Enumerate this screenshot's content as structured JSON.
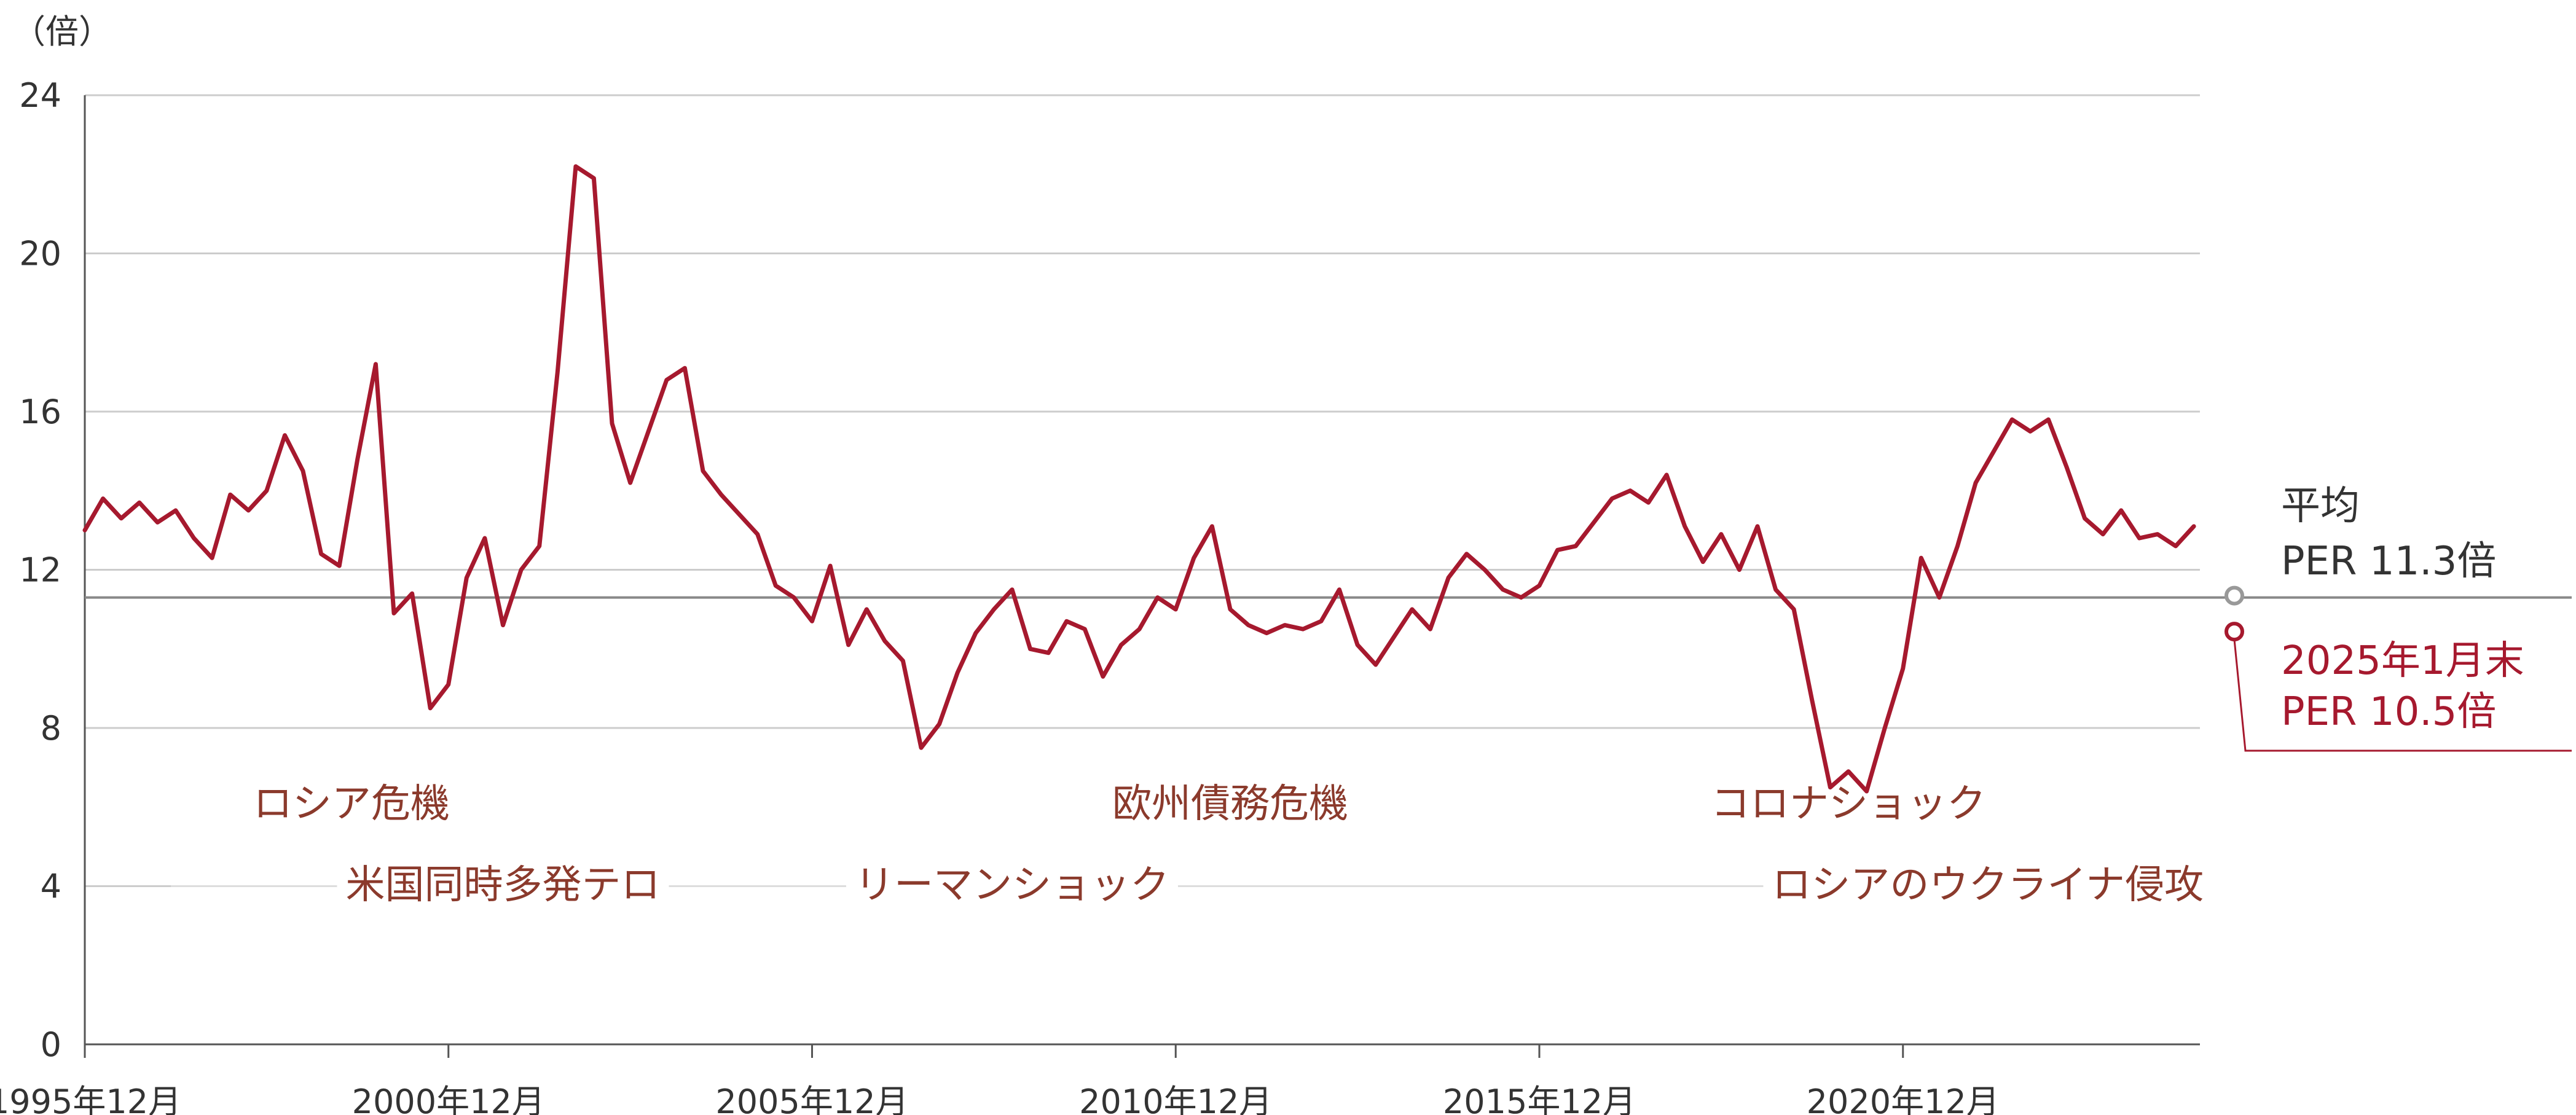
{
  "chart_data": {
    "type": "line",
    "y_unit_label": "（倍）",
    "ylim": [
      0,
      24
    ],
    "yticks": [
      "0",
      "4",
      "8",
      "12",
      "16",
      "20",
      "24"
    ],
    "x_range": [
      "1995-12",
      "2025-01"
    ],
    "xticks": [
      {
        "date": "1995-12",
        "label": "1995年12月"
      },
      {
        "date": "2000-12",
        "label": "2000年12月"
      },
      {
        "date": "2005-12",
        "label": "2005年12月"
      },
      {
        "date": "2010-12",
        "label": "2010年12月"
      },
      {
        "date": "2015-12",
        "label": "2015年12月"
      },
      {
        "date": "2020-12",
        "label": "2020年12月"
      }
    ],
    "grid": true,
    "average": {
      "value": 11.3,
      "label_line1": "平均",
      "label_line2": "PER 11.3倍"
    },
    "latest": {
      "date": "2025-01",
      "value": 10.5,
      "label_line1": "2025年1月末",
      "label_line2": "PER 10.5倍"
    },
    "series": [
      {
        "color": "#a6192e",
        "points": [
          [
            "1995-12",
            13.0
          ],
          [
            "1996-03",
            13.8
          ],
          [
            "1996-06",
            13.3
          ],
          [
            "1996-09",
            13.7
          ],
          [
            "1996-12",
            13.2
          ],
          [
            "1997-03",
            13.5
          ],
          [
            "1997-06",
            12.8
          ],
          [
            "1997-09",
            12.3
          ],
          [
            "1997-12",
            13.9
          ],
          [
            "1998-03",
            13.5
          ],
          [
            "1998-06",
            14.0
          ],
          [
            "1998-09",
            15.4
          ],
          [
            "1998-12",
            14.5
          ],
          [
            "1999-03",
            12.4
          ],
          [
            "1999-06",
            12.1
          ],
          [
            "1999-09",
            14.8
          ],
          [
            "1999-12",
            17.2
          ],
          [
            "2000-03",
            10.9
          ],
          [
            "2000-06",
            11.4
          ],
          [
            "2000-09",
            8.5
          ],
          [
            "2000-12",
            9.1
          ],
          [
            "2001-03",
            11.8
          ],
          [
            "2001-06",
            12.8
          ],
          [
            "2001-09",
            10.6
          ],
          [
            "2001-12",
            12.0
          ],
          [
            "2002-03",
            12.6
          ],
          [
            "2002-06",
            17.0
          ],
          [
            "2002-09",
            22.2
          ],
          [
            "2002-12",
            21.9
          ],
          [
            "2003-03",
            15.7
          ],
          [
            "2003-06",
            14.2
          ],
          [
            "2003-09",
            15.5
          ],
          [
            "2003-12",
            16.8
          ],
          [
            "2004-03",
            17.1
          ],
          [
            "2004-06",
            14.5
          ],
          [
            "2004-09",
            13.9
          ],
          [
            "2004-12",
            13.4
          ],
          [
            "2005-03",
            12.9
          ],
          [
            "2005-06",
            11.6
          ],
          [
            "2005-09",
            11.3
          ],
          [
            "2005-12",
            10.7
          ],
          [
            "2006-03",
            12.1
          ],
          [
            "2006-06",
            10.1
          ],
          [
            "2006-09",
            11.0
          ],
          [
            "2006-12",
            10.2
          ],
          [
            "2007-03",
            9.7
          ],
          [
            "2007-06",
            7.5
          ],
          [
            "2007-09",
            8.1
          ],
          [
            "2007-12",
            9.4
          ],
          [
            "2008-03",
            10.4
          ],
          [
            "2008-06",
            11.0
          ],
          [
            "2008-09",
            11.5
          ],
          [
            "2008-12",
            10.0
          ],
          [
            "2009-03",
            9.9
          ],
          [
            "2009-06",
            10.7
          ],
          [
            "2009-09",
            10.5
          ],
          [
            "2009-12",
            9.3
          ],
          [
            "2010-03",
            10.1
          ],
          [
            "2010-06",
            10.5
          ],
          [
            "2010-09",
            11.3
          ],
          [
            "2010-12",
            11.0
          ],
          [
            "2011-03",
            12.3
          ],
          [
            "2011-06",
            13.1
          ],
          [
            "2011-09",
            11.0
          ],
          [
            "2011-12",
            10.6
          ],
          [
            "2012-03",
            10.4
          ],
          [
            "2012-06",
            10.6
          ],
          [
            "2012-09",
            10.5
          ],
          [
            "2012-12",
            10.7
          ],
          [
            "2013-03",
            11.5
          ],
          [
            "2013-06",
            10.1
          ],
          [
            "2013-09",
            9.6
          ],
          [
            "2013-12",
            10.3
          ],
          [
            "2014-03",
            11.0
          ],
          [
            "2014-06",
            10.5
          ],
          [
            "2014-09",
            11.8
          ],
          [
            "2014-12",
            12.4
          ],
          [
            "2015-03",
            12.0
          ],
          [
            "2015-06",
            11.5
          ],
          [
            "2015-09",
            11.3
          ],
          [
            "2015-12",
            11.6
          ],
          [
            "2016-03",
            12.5
          ],
          [
            "2016-06",
            12.6
          ],
          [
            "2016-09",
            13.2
          ],
          [
            "2016-12",
            13.8
          ],
          [
            "2017-03",
            14.0
          ],
          [
            "2017-06",
            13.7
          ],
          [
            "2017-09",
            14.4
          ],
          [
            "2017-12",
            13.1
          ],
          [
            "2018-03",
            12.2
          ],
          [
            "2018-06",
            12.9
          ],
          [
            "2018-09",
            12.0
          ],
          [
            "2018-12",
            13.1
          ],
          [
            "2019-03",
            11.5
          ],
          [
            "2019-06",
            11.0
          ],
          [
            "2019-09",
            8.7
          ],
          [
            "2019-12",
            6.5
          ],
          [
            "2020-03",
            6.9
          ],
          [
            "2020-06",
            6.4
          ],
          [
            "2020-09",
            8.0
          ],
          [
            "2020-12",
            9.5
          ],
          [
            "2021-03",
            12.3
          ],
          [
            "2021-06",
            11.3
          ],
          [
            "2021-09",
            12.6
          ],
          [
            "2021-12",
            14.2
          ],
          [
            "2022-03",
            15.0
          ],
          [
            "2022-06",
            15.8
          ],
          [
            "2022-09",
            15.5
          ],
          [
            "2022-12",
            15.8
          ],
          [
            "2023-03",
            14.6
          ],
          [
            "2023-06",
            13.3
          ],
          [
            "2023-09",
            12.9
          ],
          [
            "2023-12",
            13.5
          ],
          [
            "2024-03",
            12.8
          ],
          [
            "2024-06",
            12.9
          ],
          [
            "2024-09",
            12.6
          ],
          [
            "2024-12",
            13.1
          ]
        ]
      }
    ],
    "annotations": [
      {
        "text": "ロシア危機",
        "date": "1999-08",
        "row": 1
      },
      {
        "text": "米国同時多発テロ",
        "date": "2001-09",
        "row": 2
      },
      {
        "text": "リーマンショック",
        "date": "2008-09",
        "row": 2
      },
      {
        "text": "欧州債務危機",
        "date": "2011-09",
        "row": 1
      },
      {
        "text": "コロナショック",
        "date": "2020-03",
        "row": 1
      },
      {
        "text": "ロシアのウクライナ侵攻",
        "date": "2022-02",
        "row": 2
      }
    ]
  }
}
